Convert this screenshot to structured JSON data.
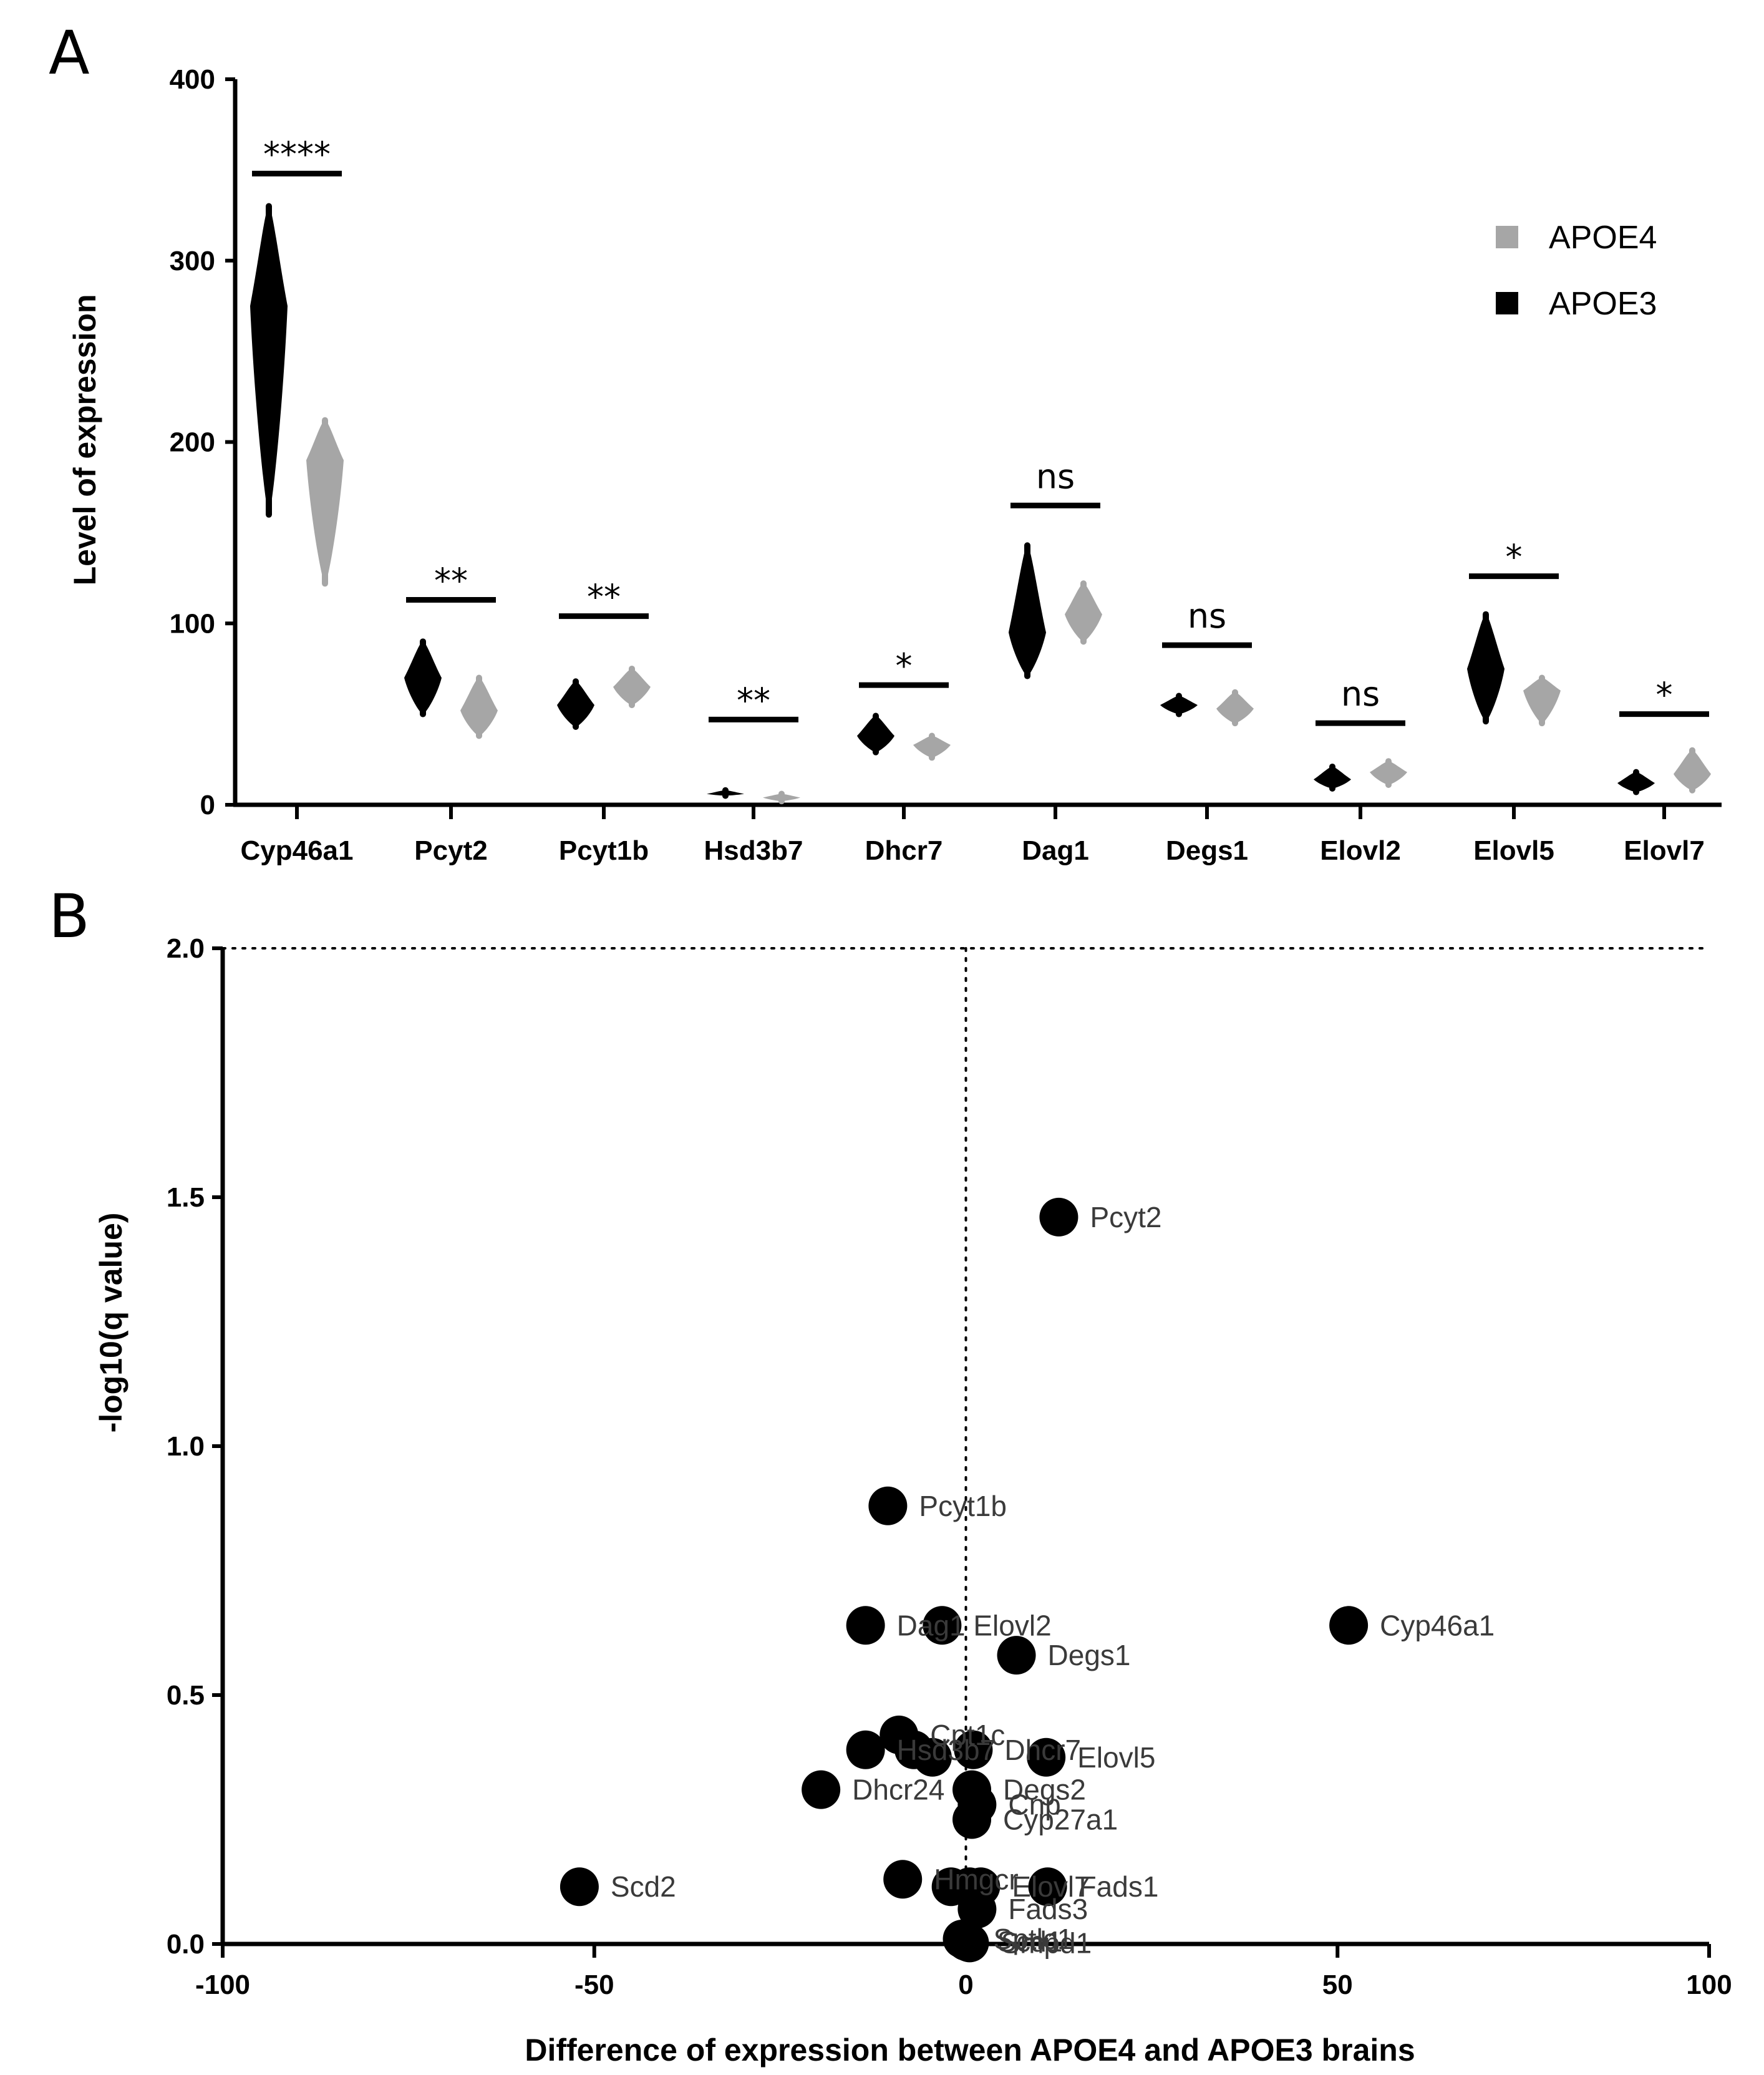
{
  "figure": {
    "panel_a_letter": "A",
    "panel_b_letter": "B"
  },
  "colors": {
    "apoe3": "#000000",
    "apoe4": "#a6a6a6",
    "point": "#000000",
    "axis": "#000000"
  },
  "chart_data": [
    {
      "type": "violin",
      "panel": "A",
      "ylabel": "Level of expression",
      "xlabel": "",
      "ylim": [
        0,
        400
      ],
      "yticks": [
        0,
        100,
        200,
        300,
        400
      ],
      "legend": {
        "position": "top-right",
        "entries": [
          "APOE4",
          "APOE3"
        ]
      },
      "categories": [
        "Cyp46a1",
        "Pcyt2",
        "Pcyt1b",
        "Hsd3b7",
        "Dhcr7",
        "Dag1",
        "Degs1",
        "Elovl2",
        "Elovl5",
        "Elovl7"
      ],
      "significance": [
        "****",
        "**",
        "**",
        "**",
        "*",
        "ns",
        "ns",
        "ns",
        "*",
        "*"
      ],
      "significance_bar_level": [
        348,
        113,
        104,
        47,
        66,
        165,
        88,
        45,
        126,
        50
      ],
      "series": [
        {
          "name": "APOE3",
          "min": [
            160,
            50,
            43,
            5,
            29,
            71,
            50,
            9,
            46,
            7
          ],
          "max": [
            330,
            90,
            68,
            8,
            49,
            143,
            60,
            21,
            105,
            18
          ],
          "median": [
            275,
            70,
            55,
            6,
            38,
            95,
            55,
            14,
            75,
            12
          ]
        },
        {
          "name": "APOE4",
          "min": [
            122,
            38,
            55,
            2,
            26,
            90,
            45,
            11,
            45,
            8
          ],
          "max": [
            212,
            70,
            75,
            6,
            38,
            122,
            62,
            24,
            70,
            30
          ],
          "median": [
            190,
            52,
            65,
            4,
            33,
            105,
            53,
            18,
            63,
            17
          ]
        }
      ]
    },
    {
      "type": "scatter",
      "panel": "B",
      "xlabel": "Difference of expression between APOE4 and APOE3 brains",
      "ylabel": "-log10(q value)",
      "xlim": [
        -100,
        100
      ],
      "ylim": [
        0,
        2.0
      ],
      "xticks": [
        -100,
        -50,
        0,
        50,
        100
      ],
      "yticks": [
        "0.0",
        "0.5",
        "1.0",
        "1.5",
        "2.0"
      ],
      "reference_lines": {
        "x": 0,
        "y": 2.0,
        "style": "dotted"
      },
      "points": [
        {
          "label": "Pcyt2",
          "x": 12.5,
          "y": 1.46
        },
        {
          "label": "Pcyt1b",
          "x": -10.5,
          "y": 0.88
        },
        {
          "label": "Dag1",
          "x": -13.5,
          "y": 0.64
        },
        {
          "label": "Elovl2",
          "x": -3.2,
          "y": 0.64
        },
        {
          "label": "Cyp46a1",
          "x": 51.5,
          "y": 0.64
        },
        {
          "label": "Degs1",
          "x": 6.8,
          "y": 0.58
        },
        {
          "label": "Cpt1c",
          "x": -9,
          "y": 0.42
        },
        {
          "label": "Hsd3b7",
          "x": -13.5,
          "y": 0.39
        },
        {
          "label": "",
          "x": -7,
          "y": 0.39
        },
        {
          "label": "",
          "x": -4.5,
          "y": 0.375
        },
        {
          "label": "Dhcr7",
          "x": 1,
          "y": 0.39
        },
        {
          "label": "Elovl5",
          "x": 10.8,
          "y": 0.375
        },
        {
          "label": "Dhcr24",
          "x": -19.5,
          "y": 0.31
        },
        {
          "label": "Degs2",
          "x": 0.8,
          "y": 0.31
        },
        {
          "label": "Cnp",
          "x": 1.5,
          "y": 0.28
        },
        {
          "label": "Cyp27a1",
          "x": 0.8,
          "y": 0.25
        },
        {
          "label": "Scd2",
          "x": -52,
          "y": 0.115
        },
        {
          "label": "Hmgcr",
          "x": -8.5,
          "y": 0.13
        },
        {
          "label": "",
          "x": -2,
          "y": 0.115
        },
        {
          "label": "",
          "x": 0.5,
          "y": 0.115
        },
        {
          "label": "Elovl7",
          "x": 2,
          "y": 0.115
        },
        {
          "label": "Fads1",
          "x": 11,
          "y": 0.115
        },
        {
          "label": "Fads3",
          "x": 1.5,
          "y": 0.07
        },
        {
          "label": "Sptlc1",
          "x": -0.5,
          "y": 0.01
        },
        {
          "label": "Scd1",
          "x": 0,
          "y": 0.005
        },
        {
          "label": "Smpd1",
          "x": 0.5,
          "y": 0.002
        }
      ]
    }
  ]
}
